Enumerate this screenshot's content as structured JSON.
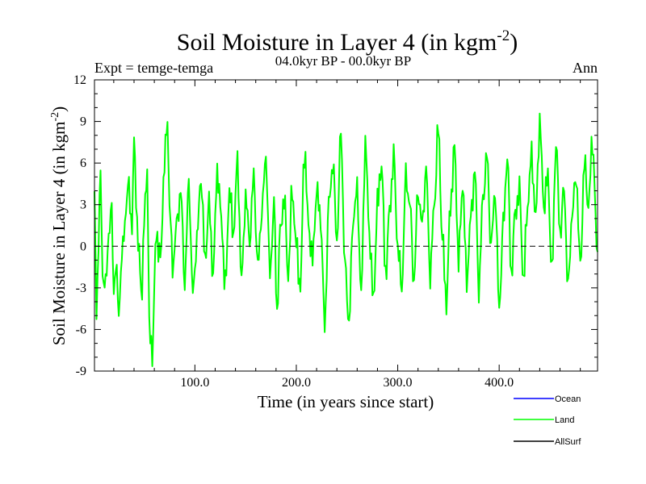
{
  "chart_data": {
    "type": "line",
    "title": "Soil Moisture in Layer 4 (in kgm",
    "title_sup": "-2",
    "title_close": ")",
    "subtitle": "04.0kyr BP - 00.0kyr BP",
    "left_label": "Expt = temge-temga",
    "right_label": "Ann",
    "xlabel": "Time (in years since start)",
    "ylabel": "Soil Moisture in Layer 4 (in kgm",
    "ylabel_sup": "-2",
    "ylabel_close": ")",
    "xlim": [
      1,
      497
    ],
    "ylim": [
      -9,
      12
    ],
    "x_ticks": [
      100,
      200,
      300,
      400
    ],
    "x_tick_labels": [
      "100.0",
      "200.0",
      "300.0",
      "400.0"
    ],
    "y_ticks": [
      -9,
      -6,
      -3,
      0,
      3,
      6,
      9,
      12
    ],
    "y_tick_labels": [
      "-9",
      "-6",
      "-3",
      "0",
      "3",
      "6",
      "9",
      "12"
    ],
    "reference_line": 0,
    "legend": [
      {
        "name": "Ocean",
        "color": "#0000ff"
      },
      {
        "name": "Land",
        "color": "#00ff00"
      },
      {
        "name": "AllSurf",
        "color": "#000000"
      }
    ],
    "series": [
      {
        "name": "Land",
        "color": "#00ff00",
        "anchors": {
          "x": [
            1,
            3,
            5,
            7,
            9,
            12,
            15,
            18,
            20,
            22,
            25,
            28,
            31,
            35,
            38,
            40,
            44,
            48,
            50,
            53,
            55,
            58,
            62,
            66,
            70,
            73,
            75,
            78,
            82,
            86,
            90,
            94,
            98,
            102,
            106,
            110,
            114,
            118,
            122,
            126,
            130,
            134,
            138,
            142,
            146,
            150,
            154,
            158,
            162,
            166,
            170,
            174,
            178,
            181,
            184,
            188,
            192,
            196,
            200,
            204,
            208,
            212,
            216,
            220,
            224,
            228,
            232,
            236,
            240,
            244,
            248,
            252,
            256,
            260,
            264,
            268,
            272,
            276,
            280,
            284,
            288,
            292,
            296,
            300,
            304,
            308,
            312,
            316,
            320,
            324,
            328,
            332,
            336,
            340,
            344,
            348,
            352,
            356,
            360,
            364,
            368,
            372,
            376,
            380,
            384,
            388,
            392,
            396,
            400,
            404,
            408,
            412,
            416,
            420,
            424,
            428,
            432,
            436,
            440,
            444,
            448,
            452,
            456,
            460,
            464,
            468,
            472,
            476,
            480,
            484,
            488,
            492,
            497
          ],
          "y": [
            3.5,
            -5.0,
            0.5,
            5.2,
            -2.0,
            -3.0,
            1.0,
            2.5,
            -3.2,
            -1.5,
            -4.5,
            -1.0,
            2.0,
            4.5,
            1.0,
            7.7,
            0.0,
            -3.3,
            2.0,
            5.8,
            -6.0,
            -7.5,
            1.0,
            -1.0,
            6.0,
            9.1,
            3.0,
            -1.5,
            1.5,
            4.0,
            -2.5,
            4.5,
            -3.5,
            0.5,
            5.0,
            -1.0,
            3.0,
            -2.0,
            5.5,
            2.0,
            -3.0,
            4.0,
            1.0,
            6.0,
            -2.5,
            3.5,
            0.5,
            5.0,
            -1.5,
            2.5,
            6.5,
            -2.0,
            3.0,
            -4.8,
            1.0,
            3.5,
            -2.0,
            4.0,
            0.0,
            -3.0,
            7.0,
            1.5,
            -1.0,
            4.0,
            2.0,
            -5.8,
            3.0,
            6.0,
            0.5,
            8.2,
            -1.5,
            -5.5,
            2.0,
            4.0,
            -3.5,
            7.5,
            1.0,
            -4.0,
            3.0,
            6.0,
            -2.0,
            2.5,
            6.5,
            0.0,
            -3.0,
            5.0,
            3.0,
            -2.5,
            4.0,
            1.5,
            5.5,
            -2.0,
            3.0,
            8.5,
            0.5,
            -4.0,
            3.0,
            7.0,
            -1.0,
            4.5,
            -2.5,
            2.0,
            5.5,
            -3.0,
            3.5,
            6.5,
            0.0,
            4.0,
            -4.5,
            1.5,
            6.5,
            -2.0,
            2.5,
            4.0,
            -2.5,
            3.0,
            6.5,
            2.0,
            8.9,
            3.0,
            5.0,
            -2.0,
            7.5,
            1.0,
            4.0,
            -3.0,
            2.5,
            5.0,
            -1.5,
            6.0,
            3.0,
            7.6,
            -1.0
          ]
        }
      },
      {
        "name": "Ocean",
        "color": "#0000ff"
      },
      {
        "name": "AllSurf",
        "color": "#000000"
      }
    ]
  }
}
